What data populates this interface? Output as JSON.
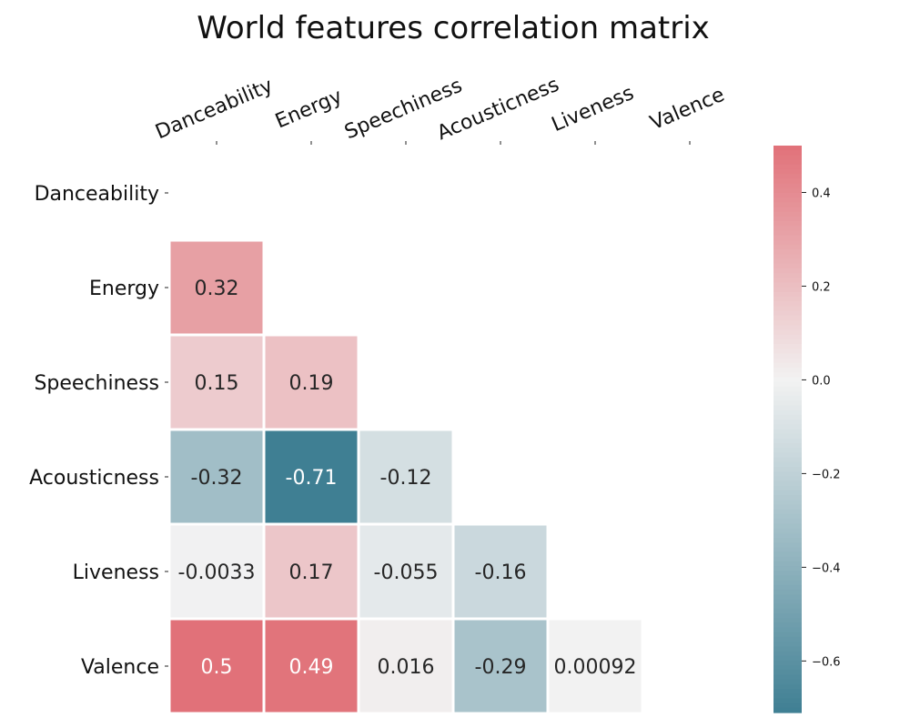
{
  "chart_data": {
    "type": "heatmap",
    "title": "World features correlation matrix",
    "labels": [
      "Danceability",
      "Energy",
      "Speechiness",
      "Acousticness",
      "Liveness",
      "Valence"
    ],
    "matrix": [
      [
        null,
        null,
        null,
        null,
        null,
        null
      ],
      [
        0.32,
        null,
        null,
        null,
        null,
        null
      ],
      [
        0.15,
        0.19,
        null,
        null,
        null,
        null
      ],
      [
        -0.32,
        -0.71,
        -0.12,
        null,
        null,
        null
      ],
      [
        -0.0033,
        0.17,
        -0.055,
        -0.16,
        null,
        null
      ],
      [
        0.5,
        0.49,
        0.016,
        -0.29,
        0.00092,
        null
      ]
    ],
    "mask": "upper-triangle-including-diagonal",
    "colorbar": {
      "vmin": -0.71,
      "vmax": 0.5,
      "ticks": [
        0.4,
        0.2,
        0.0,
        -0.2,
        -0.4,
        -0.6
      ],
      "tick_labels": [
        "0.4",
        "0.2",
        "0.0",
        "−0.2",
        "−0.4",
        "−0.6"
      ],
      "center": 0.0,
      "negative_color": "#3f7f93",
      "neutral_color": "#f2f2f2",
      "positive_color": "#da3b46"
    }
  }
}
